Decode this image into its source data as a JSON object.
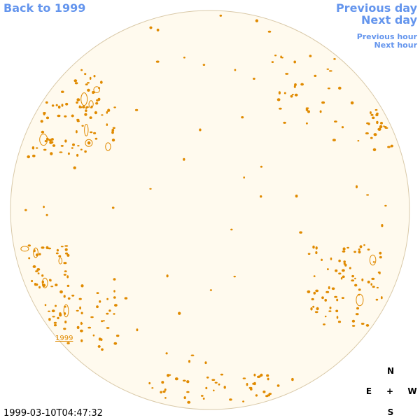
{
  "nav": {
    "back_year": "Back to 1999",
    "previous_day": "Previous day",
    "next_day": "Next day",
    "previous_hour": "Previous hour",
    "next_hour": "Next hour"
  },
  "timestamp": "1999-03-10T04:47:32",
  "compass": {
    "north": "N",
    "east": "E",
    "center": "+",
    "west": "W",
    "south": "S"
  },
  "year_marker": "1999"
}
